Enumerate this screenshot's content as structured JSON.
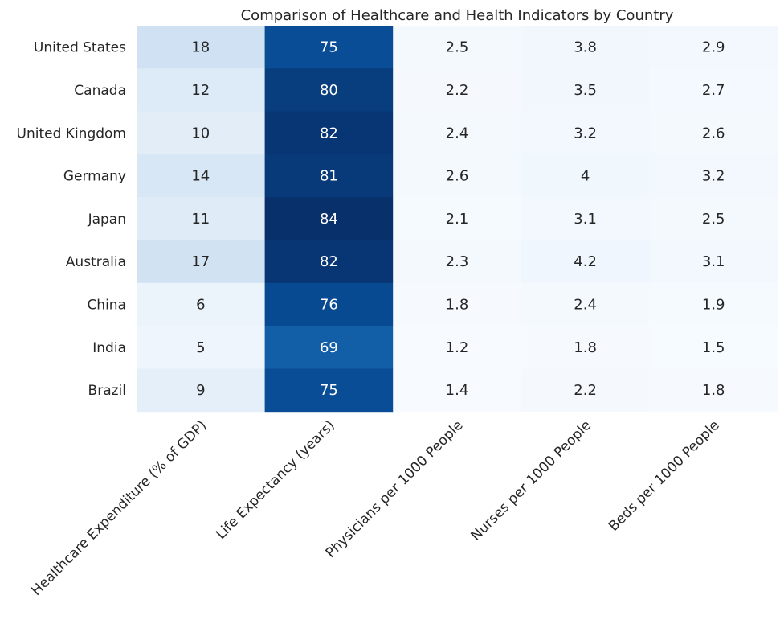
{
  "chart_data": {
    "type": "heatmap",
    "title": "Comparison of Healthcare and Health Indicators by Country",
    "rows": [
      "United States",
      "Canada",
      "United Kingdom",
      "Germany",
      "Japan",
      "Australia",
      "China",
      "India",
      "Brazil"
    ],
    "columns": [
      "Healthcare Expenditure (% of GDP)",
      "Life Expectancy (years)",
      "Physicians per 1000 People",
      "Nurses per 1000 People",
      "Beds per 1000 People"
    ],
    "values": [
      [
        18,
        75,
        2.5,
        3.8,
        2.9
      ],
      [
        12,
        80,
        2.2,
        3.5,
        2.7
      ],
      [
        10,
        82,
        2.4,
        3.2,
        2.6
      ],
      [
        14,
        81,
        2.6,
        4,
        3.2
      ],
      [
        11,
        84,
        2.1,
        3.1,
        2.5
      ],
      [
        17,
        82,
        2.3,
        4.2,
        3.1
      ],
      [
        6,
        76,
        1.8,
        2.4,
        1.9
      ],
      [
        5,
        69,
        1.2,
        1.8,
        1.5
      ],
      [
        9,
        75,
        1.4,
        2.2,
        1.8
      ]
    ],
    "colormap": "Blues",
    "color_range": [
      1.2,
      84
    ],
    "annotations": true,
    "colorbar": false
  }
}
